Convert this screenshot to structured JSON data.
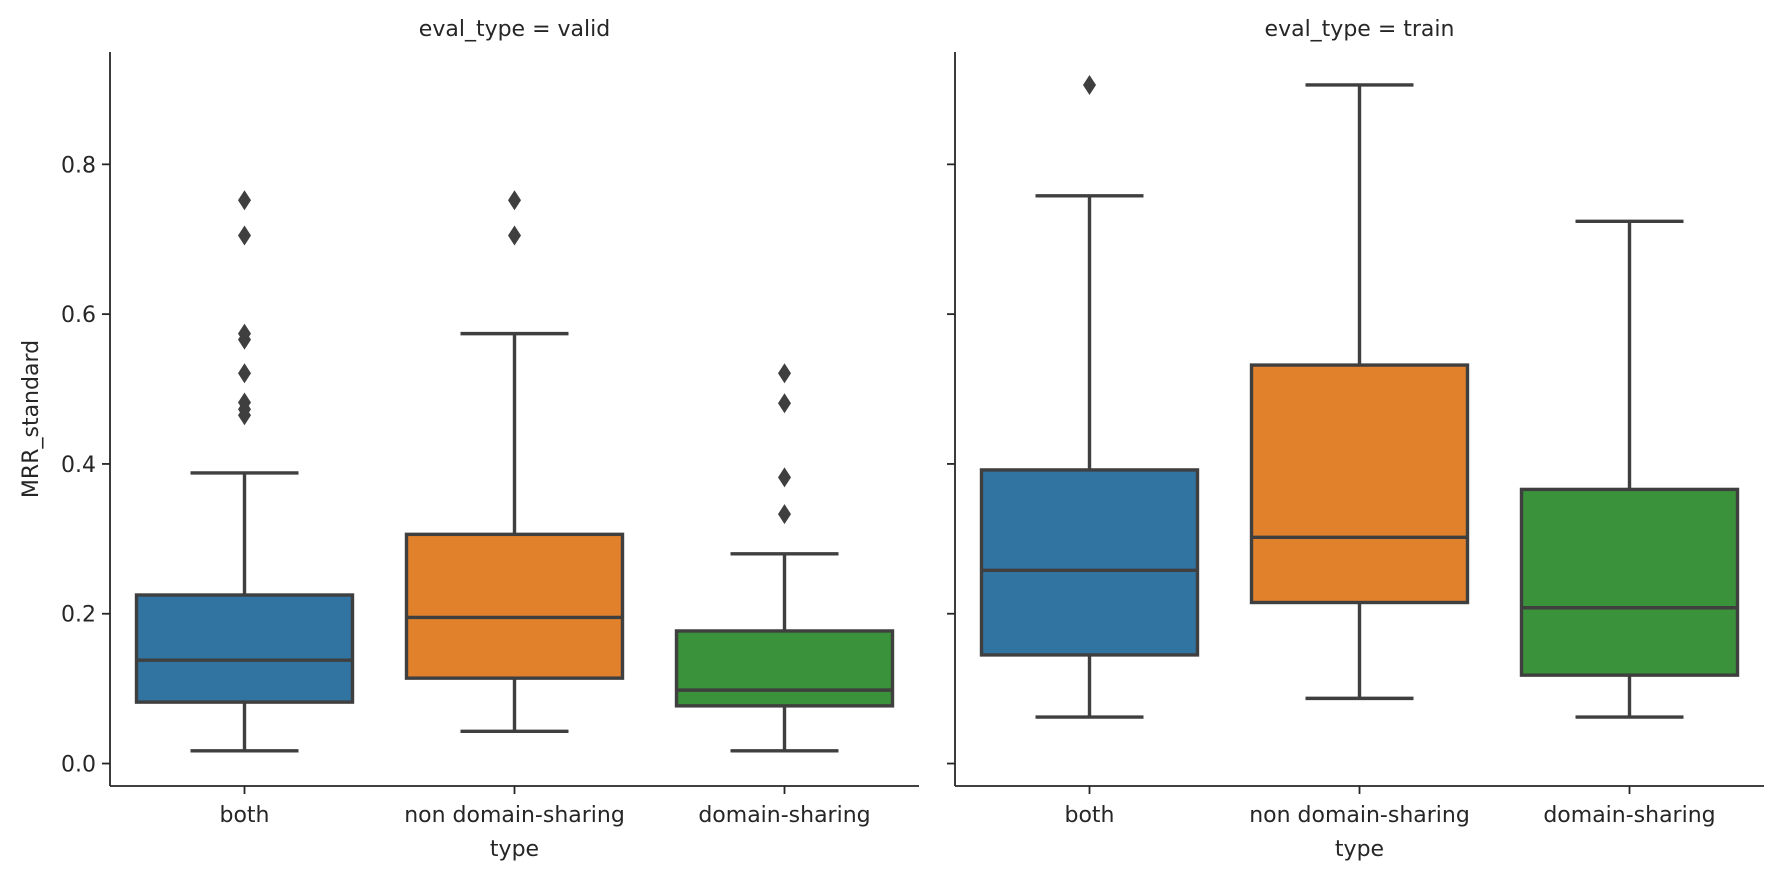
{
  "chart_data": {
    "type": "box",
    "ylabel": "MRR_standard",
    "xlabel": "type",
    "categories": [
      "both",
      "non domain-sharing",
      "domain-sharing"
    ],
    "colors": {
      "both": "#3274a1",
      "non domain-sharing": "#e1812c",
      "domain-sharing": "#3a923a"
    },
    "ylim": [
      -0.03,
      0.95
    ],
    "yticks": [
      0.0,
      0.2,
      0.4,
      0.6,
      0.8
    ],
    "ytick_labels": [
      "0.0",
      "0.2",
      "0.4",
      "0.6",
      "0.8"
    ],
    "grid": false,
    "facets": [
      {
        "title": "eval_type = valid",
        "boxes": [
          {
            "category": "both",
            "whisker_low": 0.017,
            "q1": 0.082,
            "median": 0.138,
            "q3": 0.225,
            "whisker_high": 0.388,
            "outliers": [
              0.465,
              0.473,
              0.482,
              0.521,
              0.566,
              0.574,
              0.705,
              0.752
            ]
          },
          {
            "category": "non domain-sharing",
            "whisker_low": 0.043,
            "q1": 0.114,
            "median": 0.195,
            "q3": 0.306,
            "whisker_high": 0.574,
            "outliers": [
              0.705,
              0.752
            ]
          },
          {
            "category": "domain-sharing",
            "whisker_low": 0.017,
            "q1": 0.077,
            "median": 0.098,
            "q3": 0.177,
            "whisker_high": 0.28,
            "outliers": [
              0.333,
              0.382,
              0.481,
              0.521
            ]
          }
        ]
      },
      {
        "title": "eval_type = train",
        "boxes": [
          {
            "category": "both",
            "whisker_low": 0.062,
            "q1": 0.145,
            "median": 0.258,
            "q3": 0.392,
            "whisker_high": 0.758,
            "outliers": [
              0.906
            ]
          },
          {
            "category": "non domain-sharing",
            "whisker_low": 0.087,
            "q1": 0.215,
            "median": 0.302,
            "q3": 0.532,
            "whisker_high": 0.906,
            "outliers": []
          },
          {
            "category": "domain-sharing",
            "whisker_low": 0.062,
            "q1": 0.118,
            "median": 0.208,
            "q3": 0.366,
            "whisker_high": 0.724,
            "outliers": []
          }
        ]
      }
    ]
  }
}
